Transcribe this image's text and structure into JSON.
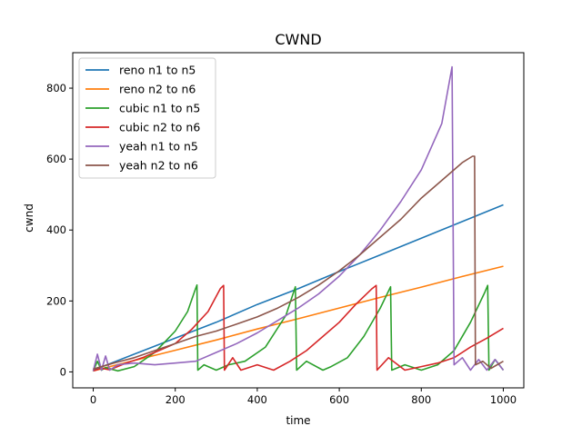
{
  "chart_data": {
    "type": "line",
    "title": "CWND",
    "xlabel": "time",
    "ylabel": "cwnd",
    "xlim": [
      -50,
      1050
    ],
    "ylim": [
      -45,
      900
    ],
    "xticks": [
      "0",
      "200",
      "400",
      "600",
      "800",
      "1000"
    ],
    "yticks": [
      "0",
      "200",
      "400",
      "600",
      "800"
    ],
    "grid": false,
    "legend_position": "top-left",
    "series": [
      {
        "name": "reno n1 to n5",
        "color": "#1f77b4",
        "points": [
          [
            0,
            5
          ],
          [
            100,
            50
          ],
          [
            200,
            95
          ],
          [
            300,
            140
          ],
          [
            400,
            190
          ],
          [
            500,
            235
          ],
          [
            600,
            283
          ],
          [
            700,
            330
          ],
          [
            800,
            377
          ],
          [
            900,
            424
          ],
          [
            1000,
            471
          ]
        ]
      },
      {
        "name": "reno n2 to n6",
        "color": "#ff7f0e",
        "points": [
          [
            0,
            3
          ],
          [
            100,
            32
          ],
          [
            200,
            61
          ],
          [
            300,
            90
          ],
          [
            400,
            121
          ],
          [
            500,
            150
          ],
          [
            600,
            180
          ],
          [
            700,
            210
          ],
          [
            800,
            239
          ],
          [
            900,
            269
          ],
          [
            1000,
            298
          ]
        ]
      },
      {
        "name": "cubic n1 to n5",
        "color": "#2ca02c",
        "points": [
          [
            0,
            2
          ],
          [
            10,
            30
          ],
          [
            20,
            5
          ],
          [
            30,
            12
          ],
          [
            60,
            3
          ],
          [
            100,
            15
          ],
          [
            150,
            55
          ],
          [
            200,
            115
          ],
          [
            230,
            170
          ],
          [
            248,
            230
          ],
          [
            253,
            245
          ],
          [
            255,
            5
          ],
          [
            270,
            20
          ],
          [
            300,
            5
          ],
          [
            330,
            20
          ],
          [
            370,
            30
          ],
          [
            420,
            70
          ],
          [
            470,
            160
          ],
          [
            493,
            240
          ],
          [
            496,
            5
          ],
          [
            520,
            30
          ],
          [
            560,
            5
          ],
          [
            580,
            15
          ],
          [
            620,
            40
          ],
          [
            660,
            100
          ],
          [
            700,
            180
          ],
          [
            725,
            240
          ],
          [
            728,
            5
          ],
          [
            760,
            20
          ],
          [
            800,
            5
          ],
          [
            840,
            20
          ],
          [
            880,
            60
          ],
          [
            920,
            140
          ],
          [
            955,
            225
          ],
          [
            962,
            244
          ],
          [
            965,
            5
          ],
          [
            980,
            35
          ],
          [
            1000,
            5
          ]
        ]
      },
      {
        "name": "cubic n2 to n6",
        "color": "#d62728",
        "points": [
          [
            0,
            3
          ],
          [
            20,
            10
          ],
          [
            40,
            6
          ],
          [
            80,
            25
          ],
          [
            120,
            40
          ],
          [
            160,
            60
          ],
          [
            200,
            80
          ],
          [
            240,
            120
          ],
          [
            280,
            170
          ],
          [
            310,
            235
          ],
          [
            318,
            244
          ],
          [
            320,
            5
          ],
          [
            340,
            40
          ],
          [
            360,
            5
          ],
          [
            400,
            20
          ],
          [
            440,
            5
          ],
          [
            480,
            30
          ],
          [
            520,
            60
          ],
          [
            560,
            100
          ],
          [
            600,
            140
          ],
          [
            640,
            190
          ],
          [
            680,
            235
          ],
          [
            690,
            244
          ],
          [
            692,
            5
          ],
          [
            720,
            40
          ],
          [
            760,
            5
          ],
          [
            800,
            15
          ],
          [
            840,
            25
          ],
          [
            880,
            40
          ],
          [
            920,
            70
          ],
          [
            960,
            95
          ],
          [
            1000,
            123
          ]
        ]
      },
      {
        "name": "yeah n1 to n5",
        "color": "#9467bd",
        "points": [
          [
            0,
            3
          ],
          [
            10,
            50
          ],
          [
            20,
            5
          ],
          [
            30,
            45
          ],
          [
            40,
            5
          ],
          [
            60,
            20
          ],
          [
            100,
            25
          ],
          [
            150,
            20
          ],
          [
            200,
            25
          ],
          [
            250,
            30
          ],
          [
            300,
            55
          ],
          [
            350,
            80
          ],
          [
            400,
            110
          ],
          [
            450,
            145
          ],
          [
            500,
            180
          ],
          [
            550,
            220
          ],
          [
            600,
            270
          ],
          [
            650,
            330
          ],
          [
            700,
            400
          ],
          [
            750,
            480
          ],
          [
            800,
            570
          ],
          [
            850,
            700
          ],
          [
            875,
            860
          ],
          [
            880,
            20
          ],
          [
            900,
            40
          ],
          [
            920,
            5
          ],
          [
            940,
            35
          ],
          [
            960,
            5
          ],
          [
            980,
            35
          ],
          [
            1000,
            5
          ]
        ]
      },
      {
        "name": "yeah n2 to n6",
        "color": "#8c564b",
        "points": [
          [
            0,
            8
          ],
          [
            50,
            25
          ],
          [
            100,
            40
          ],
          [
            150,
            60
          ],
          [
            200,
            80
          ],
          [
            250,
            100
          ],
          [
            300,
            115
          ],
          [
            350,
            135
          ],
          [
            400,
            155
          ],
          [
            450,
            180
          ],
          [
            500,
            210
          ],
          [
            550,
            245
          ],
          [
            600,
            285
          ],
          [
            650,
            330
          ],
          [
            700,
            380
          ],
          [
            750,
            430
          ],
          [
            800,
            490
          ],
          [
            850,
            540
          ],
          [
            900,
            590
          ],
          [
            925,
            608
          ],
          [
            930,
            608
          ],
          [
            932,
            20
          ],
          [
            950,
            30
          ],
          [
            970,
            10
          ],
          [
            1000,
            30
          ]
        ]
      }
    ]
  }
}
